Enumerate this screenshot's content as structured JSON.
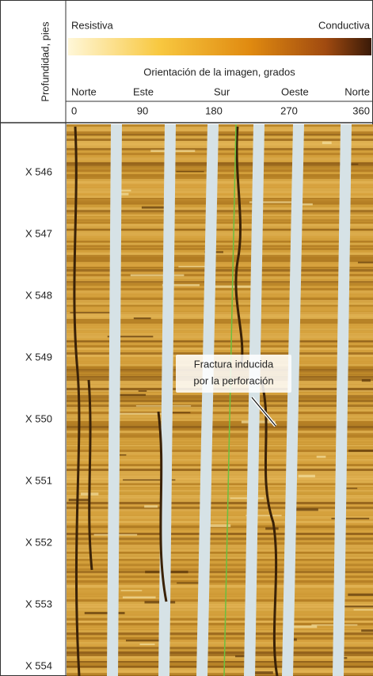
{
  "header": {
    "axis_label": "Profundidad, pies",
    "scale": {
      "left": "Resistiva",
      "right": "Conductiva"
    },
    "orientation_title": "Orientación de la imagen, grados",
    "directions": [
      "Norte",
      "Este",
      "Sur",
      "Oeste",
      "Norte"
    ],
    "degrees": [
      "0",
      "90",
      "180",
      "270",
      "360"
    ]
  },
  "depths": [
    "X 546",
    "X 547",
    "X 548",
    "X 549",
    "X 550",
    "X 551",
    "X 552",
    "X 553",
    "X 554"
  ],
  "annotation": {
    "lines": [
      "Fractura inducida",
      "por la perforación"
    ]
  }
}
